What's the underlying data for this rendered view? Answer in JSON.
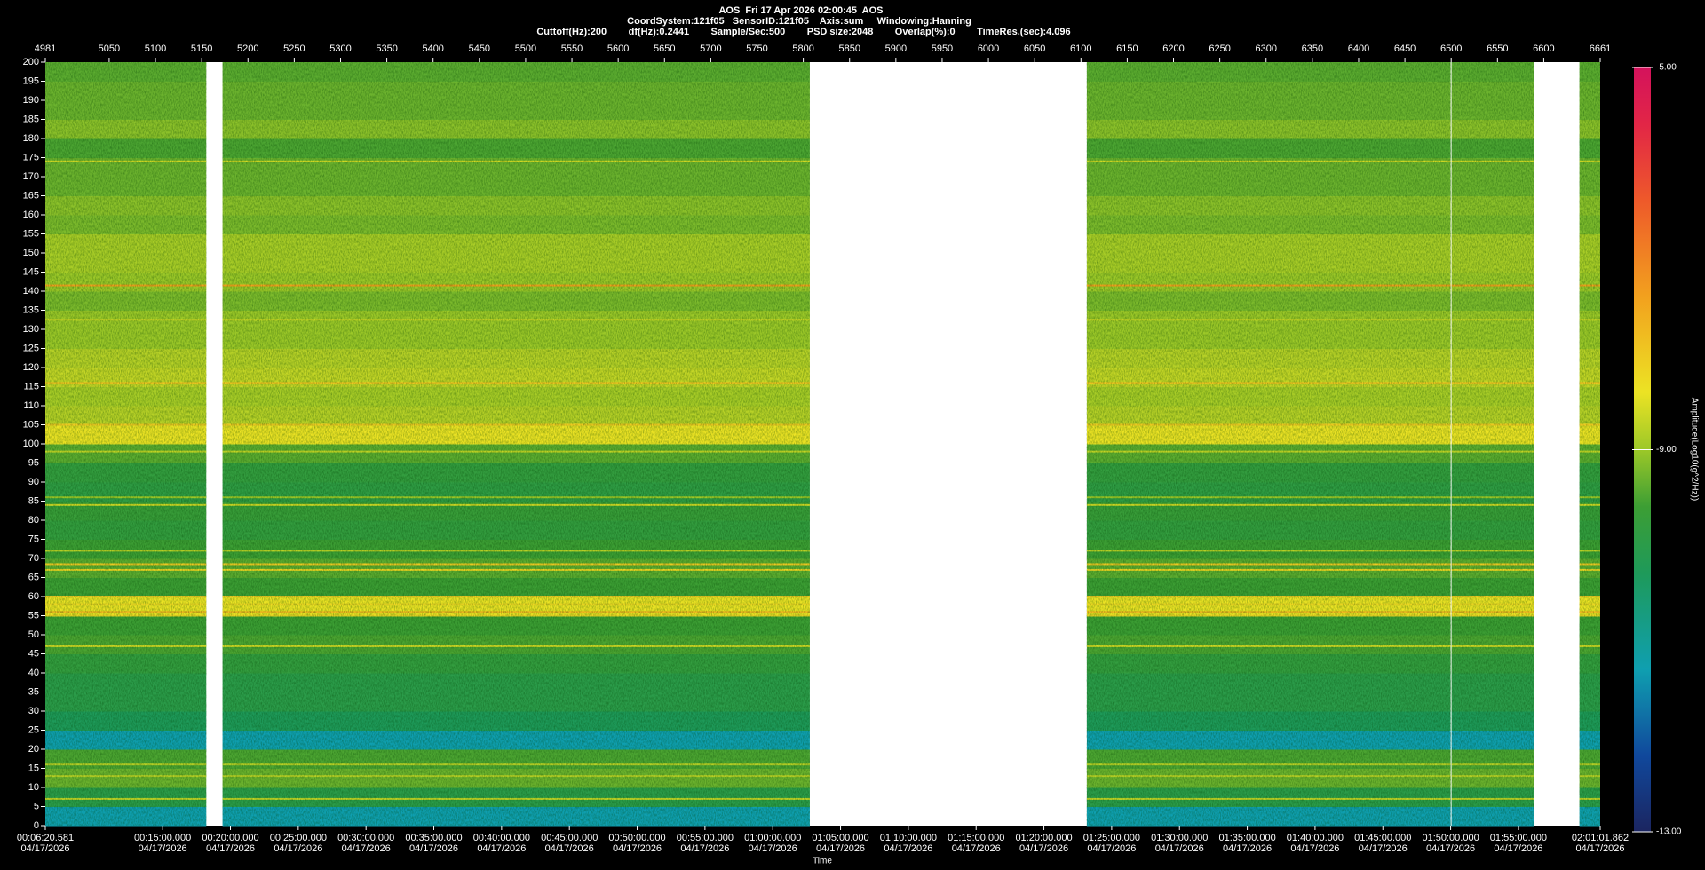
{
  "chart_data": {
    "type": "spectrogram",
    "title": "AOS  Fri 17 Apr 2026 02:00:45  AOS",
    "subtitle": "CoordSystem:121f05   SensorID:121f05    Axis:sum     Windowing:Hanning",
    "subtitle2": "Cuttoff(Hz):200        df(Hz):0.2441        Sample/Sec:500        PSD size:2048        Overlap(%):0        TimeRes.(sec):4.096",
    "x_label": "Time",
    "x_date": "04/17/2026",
    "colorbar_label": "Amplitude(Log10(g^2/Hz))",
    "xlim": [
      380.581,
      7261.862
    ],
    "xticks": [
      {
        "value": 380.581,
        "label": "00:06:20.581"
      },
      {
        "value": 900,
        "label": "00:15:00.000"
      },
      {
        "value": 1200,
        "label": "00:20:00.000"
      },
      {
        "value": 1500,
        "label": "00:25:00.000"
      },
      {
        "value": 1800,
        "label": "00:30:00.000"
      },
      {
        "value": 2100,
        "label": "00:35:00.000"
      },
      {
        "value": 2400,
        "label": "00:40:00.000"
      },
      {
        "value": 2700,
        "label": "00:45:00.000"
      },
      {
        "value": 3000,
        "label": "00:50:00.000"
      },
      {
        "value": 3300,
        "label": "00:55:00.000"
      },
      {
        "value": 3600,
        "label": "01:00:00.000"
      },
      {
        "value": 3900,
        "label": "01:05:00.000"
      },
      {
        "value": 4200,
        "label": "01:10:00.000"
      },
      {
        "value": 4500,
        "label": "01:15:00.000"
      },
      {
        "value": 4800,
        "label": "01:20:00.000"
      },
      {
        "value": 5100,
        "label": "01:25:00.000"
      },
      {
        "value": 5400,
        "label": "01:30:00.000"
      },
      {
        "value": 5700,
        "label": "01:35:00.000"
      },
      {
        "value": 6000,
        "label": "01:40:00.000"
      },
      {
        "value": 6300,
        "label": "01:45:00.000"
      },
      {
        "value": 6600,
        "label": "01:50:00.000"
      },
      {
        "value": 6900,
        "label": "01:55:00.000"
      },
      {
        "value": 7261.862,
        "label": "02:01:01.862"
      }
    ],
    "x2lim": [
      4981,
      6661
    ],
    "x2ticks": [
      4981,
      5050,
      5100,
      5150,
      5200,
      5250,
      5300,
      5350,
      5400,
      5450,
      5500,
      5550,
      5600,
      5650,
      5700,
      5750,
      5800,
      5850,
      5900,
      5950,
      6000,
      6050,
      6100,
      6150,
      6200,
      6250,
      6300,
      6350,
      6400,
      6450,
      6500,
      6550,
      6600,
      6661
    ],
    "ylim": [
      0,
      200
    ],
    "yticks": [
      0,
      5,
      10,
      15,
      20,
      25,
      30,
      35,
      40,
      45,
      50,
      55,
      60,
      65,
      70,
      75,
      80,
      85,
      90,
      95,
      100,
      105,
      110,
      115,
      120,
      125,
      130,
      135,
      140,
      145,
      150,
      155,
      160,
      165,
      170,
      175,
      180,
      185,
      190,
      195,
      200
    ],
    "clim": [
      -13,
      -5
    ],
    "cticks": [
      {
        "value": -13,
        "label": "-13.00"
      },
      {
        "value": -9,
        "label": "-9.00"
      },
      {
        "value": -5,
        "label": "-5.00"
      }
    ],
    "colormap": [
      {
        "value": -13,
        "color": "#1b2560"
      },
      {
        "value": -12.2,
        "color": "#10489c"
      },
      {
        "value": -11.3,
        "color": "#0f9fb0"
      },
      {
        "value": -10.3,
        "color": "#1e9a5a"
      },
      {
        "value": -9.6,
        "color": "#3c9e34"
      },
      {
        "value": -9.0,
        "color": "#9cc828"
      },
      {
        "value": -8.4,
        "color": "#ece324"
      },
      {
        "value": -7.4,
        "color": "#f2a11e"
      },
      {
        "value": -6.4,
        "color": "#ee5a2a"
      },
      {
        "value": -5.6,
        "color": "#e22646"
      },
      {
        "value": -5,
        "color": "#d4125c"
      }
    ],
    "segments": [
      [
        380.581,
        1093
      ],
      [
        1165,
        3764
      ],
      [
        4990,
        6600
      ],
      [
        6604,
        6968
      ],
      [
        7170,
        7261.862
      ]
    ],
    "bands": {
      "bins": [
        0,
        5,
        10,
        15,
        20,
        25,
        30,
        35,
        40,
        45,
        50,
        55,
        60,
        65,
        70,
        75,
        80,
        85,
        90,
        95,
        100,
        105,
        110,
        115,
        120,
        125,
        130,
        135,
        140,
        145,
        150,
        155,
        160,
        165,
        170,
        175,
        180,
        185,
        190,
        195,
        200
      ],
      "values": [
        -11.3,
        -10.0,
        -9.3,
        -9.5,
        -11.3,
        -10.3,
        -10.0,
        -10.0,
        -9.8,
        -9.5,
        -9.6,
        -8.4,
        -9.6,
        -9.4,
        -9.6,
        -9.8,
        -9.7,
        -9.9,
        -9.8,
        -9.4,
        -8.4,
        -8.8,
        -8.9,
        -8.7,
        -8.8,
        -9.0,
        -9.0,
        -9.2,
        -9.0,
        -8.9,
        -8.9,
        -9.2,
        -9.1,
        -9.3,
        -9.3,
        -9.5,
        -9.1,
        -9.3,
        -9.3,
        -9.4
      ]
    },
    "tones": [
      {
        "freq": 174,
        "value": -8.6
      },
      {
        "freq": 141.5,
        "value": -7.4
      },
      {
        "freq": 132.5,
        "value": -8.6
      },
      {
        "freq": 118,
        "value": -8.7
      },
      {
        "freq": 116,
        "value": -8.0
      },
      {
        "freq": 105,
        "value": -8.0
      },
      {
        "freq": 98,
        "value": -8.7
      },
      {
        "freq": 86,
        "value": -9.0
      },
      {
        "freq": 84,
        "value": -8.6
      },
      {
        "freq": 72,
        "value": -8.8
      },
      {
        "freq": 68.5,
        "value": -8.0
      },
      {
        "freq": 67,
        "value": -8.2
      },
      {
        "freq": 60,
        "value": -8.0
      },
      {
        "freq": 58,
        "value": -8.2
      },
      {
        "freq": 56,
        "value": -7.8
      },
      {
        "freq": 55,
        "value": -8.2
      },
      {
        "freq": 47,
        "value": -8.6
      },
      {
        "freq": 16,
        "value": -8.8
      },
      {
        "freq": 13,
        "value": -8.8
      },
      {
        "freq": 7,
        "value": -8.7
      }
    ]
  }
}
